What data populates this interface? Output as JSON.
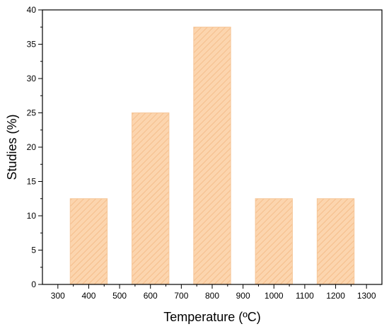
{
  "chart_data": {
    "type": "bar",
    "title": "",
    "xlabel": "Temperature (ºC)",
    "ylabel": "Studies (%)",
    "x": [
      400,
      600,
      800,
      1000,
      1200
    ],
    "values": [
      12.5,
      25,
      37.5,
      12.5,
      12.5
    ],
    "bar_width": 120,
    "xlim": [
      250,
      1350
    ],
    "ylim": [
      0,
      40
    ],
    "x_ticks": [
      300,
      400,
      500,
      600,
      700,
      800,
      900,
      1000,
      1100,
      1200,
      1300
    ],
    "y_ticks": [
      0,
      5,
      10,
      15,
      20,
      25,
      30,
      35,
      40
    ],
    "grid": false,
    "legend": "none",
    "bar_color": "#fcd5ae",
    "bar_edge_color": "#f6c79a",
    "hatch_color": "#f3b882",
    "axis_color": "#000000"
  }
}
